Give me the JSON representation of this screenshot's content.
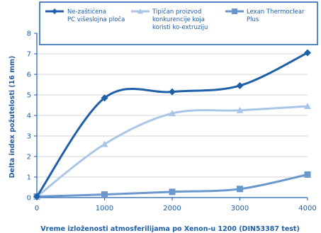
{
  "chart_data": {
    "type": "line",
    "title": "",
    "xlabel": "Vreme izloženosti atmosferilijama po Xenon-u 1200 (DIN53387 test)",
    "ylabel": "Delta index požutelosti (16 mm)",
    "x": [
      0,
      1000,
      2000,
      3000,
      4000
    ],
    "xlim": [
      0,
      4000
    ],
    "ylim": [
      0,
      8
    ],
    "x_ticks": [
      "0",
      "1000",
      "2000",
      "3000",
      "4000"
    ],
    "y_ticks": [
      "0",
      "1",
      "2",
      "3",
      "4",
      "5",
      "6",
      "7",
      "8"
    ],
    "grid": "horizontal",
    "legend_position": "top",
    "series": [
      {
        "name_lines": [
          "Ne-zaštićena",
          "PC višeslojna ploča"
        ],
        "values": [
          0.05,
          4.85,
          5.15,
          5.45,
          7.05
        ],
        "color": "#1f5fa8",
        "marker": "diamond"
      },
      {
        "name_lines": [
          "Tipičan proizvod",
          "konkurencije koja",
          "koristi ko-extruziju"
        ],
        "values": [
          0.05,
          2.6,
          4.1,
          4.25,
          4.45
        ],
        "color": "#a9c6e8",
        "marker": "triangle"
      },
      {
        "name_lines": [
          "Lexan Thermoclear",
          "Plus"
        ],
        "values": [
          0.05,
          0.15,
          0.28,
          0.42,
          1.12
        ],
        "color": "#6b97cf",
        "marker": "square"
      }
    ]
  }
}
